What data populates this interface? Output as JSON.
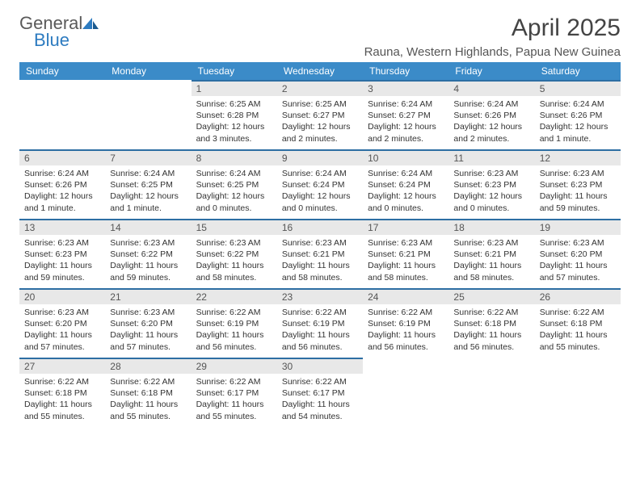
{
  "brand": {
    "text1": "General",
    "text2": "Blue"
  },
  "title": "April 2025",
  "location": "Rauna, Western Highlands, Papua New Guinea",
  "colors": {
    "header_bg": "#3b8bc8",
    "header_text": "#ffffff",
    "daynum_bg": "#e8e8e8",
    "daynum_border": "#2d6ea3",
    "body_text": "#333333",
    "brand_gray": "#5a5a5a",
    "brand_blue": "#2d7bc0"
  },
  "weekdays": [
    "Sunday",
    "Monday",
    "Tuesday",
    "Wednesday",
    "Thursday",
    "Friday",
    "Saturday"
  ],
  "weeks": [
    [
      null,
      null,
      {
        "n": "1",
        "sr": "Sunrise: 6:25 AM",
        "ss": "Sunset: 6:28 PM",
        "dl": "Daylight: 12 hours and 3 minutes."
      },
      {
        "n": "2",
        "sr": "Sunrise: 6:25 AM",
        "ss": "Sunset: 6:27 PM",
        "dl": "Daylight: 12 hours and 2 minutes."
      },
      {
        "n": "3",
        "sr": "Sunrise: 6:24 AM",
        "ss": "Sunset: 6:27 PM",
        "dl": "Daylight: 12 hours and 2 minutes."
      },
      {
        "n": "4",
        "sr": "Sunrise: 6:24 AM",
        "ss": "Sunset: 6:26 PM",
        "dl": "Daylight: 12 hours and 2 minutes."
      },
      {
        "n": "5",
        "sr": "Sunrise: 6:24 AM",
        "ss": "Sunset: 6:26 PM",
        "dl": "Daylight: 12 hours and 1 minute."
      }
    ],
    [
      {
        "n": "6",
        "sr": "Sunrise: 6:24 AM",
        "ss": "Sunset: 6:26 PM",
        "dl": "Daylight: 12 hours and 1 minute."
      },
      {
        "n": "7",
        "sr": "Sunrise: 6:24 AM",
        "ss": "Sunset: 6:25 PM",
        "dl": "Daylight: 12 hours and 1 minute."
      },
      {
        "n": "8",
        "sr": "Sunrise: 6:24 AM",
        "ss": "Sunset: 6:25 PM",
        "dl": "Daylight: 12 hours and 0 minutes."
      },
      {
        "n": "9",
        "sr": "Sunrise: 6:24 AM",
        "ss": "Sunset: 6:24 PM",
        "dl": "Daylight: 12 hours and 0 minutes."
      },
      {
        "n": "10",
        "sr": "Sunrise: 6:24 AM",
        "ss": "Sunset: 6:24 PM",
        "dl": "Daylight: 12 hours and 0 minutes."
      },
      {
        "n": "11",
        "sr": "Sunrise: 6:23 AM",
        "ss": "Sunset: 6:23 PM",
        "dl": "Daylight: 12 hours and 0 minutes."
      },
      {
        "n": "12",
        "sr": "Sunrise: 6:23 AM",
        "ss": "Sunset: 6:23 PM",
        "dl": "Daylight: 11 hours and 59 minutes."
      }
    ],
    [
      {
        "n": "13",
        "sr": "Sunrise: 6:23 AM",
        "ss": "Sunset: 6:23 PM",
        "dl": "Daylight: 11 hours and 59 minutes."
      },
      {
        "n": "14",
        "sr": "Sunrise: 6:23 AM",
        "ss": "Sunset: 6:22 PM",
        "dl": "Daylight: 11 hours and 59 minutes."
      },
      {
        "n": "15",
        "sr": "Sunrise: 6:23 AM",
        "ss": "Sunset: 6:22 PM",
        "dl": "Daylight: 11 hours and 58 minutes."
      },
      {
        "n": "16",
        "sr": "Sunrise: 6:23 AM",
        "ss": "Sunset: 6:21 PM",
        "dl": "Daylight: 11 hours and 58 minutes."
      },
      {
        "n": "17",
        "sr": "Sunrise: 6:23 AM",
        "ss": "Sunset: 6:21 PM",
        "dl": "Daylight: 11 hours and 58 minutes."
      },
      {
        "n": "18",
        "sr": "Sunrise: 6:23 AM",
        "ss": "Sunset: 6:21 PM",
        "dl": "Daylight: 11 hours and 58 minutes."
      },
      {
        "n": "19",
        "sr": "Sunrise: 6:23 AM",
        "ss": "Sunset: 6:20 PM",
        "dl": "Daylight: 11 hours and 57 minutes."
      }
    ],
    [
      {
        "n": "20",
        "sr": "Sunrise: 6:23 AM",
        "ss": "Sunset: 6:20 PM",
        "dl": "Daylight: 11 hours and 57 minutes."
      },
      {
        "n": "21",
        "sr": "Sunrise: 6:23 AM",
        "ss": "Sunset: 6:20 PM",
        "dl": "Daylight: 11 hours and 57 minutes."
      },
      {
        "n": "22",
        "sr": "Sunrise: 6:22 AM",
        "ss": "Sunset: 6:19 PM",
        "dl": "Daylight: 11 hours and 56 minutes."
      },
      {
        "n": "23",
        "sr": "Sunrise: 6:22 AM",
        "ss": "Sunset: 6:19 PM",
        "dl": "Daylight: 11 hours and 56 minutes."
      },
      {
        "n": "24",
        "sr": "Sunrise: 6:22 AM",
        "ss": "Sunset: 6:19 PM",
        "dl": "Daylight: 11 hours and 56 minutes."
      },
      {
        "n": "25",
        "sr": "Sunrise: 6:22 AM",
        "ss": "Sunset: 6:18 PM",
        "dl": "Daylight: 11 hours and 56 minutes."
      },
      {
        "n": "26",
        "sr": "Sunrise: 6:22 AM",
        "ss": "Sunset: 6:18 PM",
        "dl": "Daylight: 11 hours and 55 minutes."
      }
    ],
    [
      {
        "n": "27",
        "sr": "Sunrise: 6:22 AM",
        "ss": "Sunset: 6:18 PM",
        "dl": "Daylight: 11 hours and 55 minutes."
      },
      {
        "n": "28",
        "sr": "Sunrise: 6:22 AM",
        "ss": "Sunset: 6:18 PM",
        "dl": "Daylight: 11 hours and 55 minutes."
      },
      {
        "n": "29",
        "sr": "Sunrise: 6:22 AM",
        "ss": "Sunset: 6:17 PM",
        "dl": "Daylight: 11 hours and 55 minutes."
      },
      {
        "n": "30",
        "sr": "Sunrise: 6:22 AM",
        "ss": "Sunset: 6:17 PM",
        "dl": "Daylight: 11 hours and 54 minutes."
      },
      null,
      null,
      null
    ]
  ]
}
